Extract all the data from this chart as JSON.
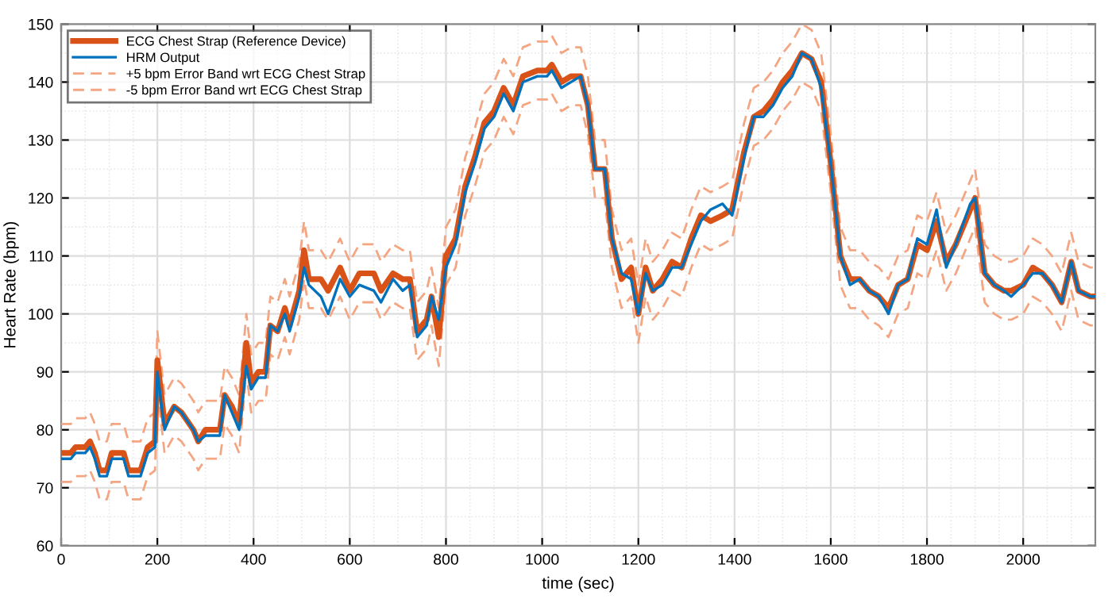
{
  "chart_data": {
    "type": "line",
    "xlabel": "time (sec)",
    "ylabel": "Heart Rate (bpm)",
    "x": [
      0,
      20,
      30,
      50,
      60,
      70,
      80,
      95,
      105,
      130,
      140,
      165,
      180,
      195,
      200,
      215,
      235,
      250,
      275,
      285,
      300,
      330,
      340,
      355,
      370,
      385,
      395,
      410,
      425,
      435,
      450,
      465,
      475,
      495,
      505,
      515,
      540,
      555,
      580,
      600,
      620,
      650,
      665,
      690,
      710,
      725,
      740,
      760,
      770,
      785,
      800,
      820,
      840,
      860,
      880,
      900,
      920,
      940,
      960,
      990,
      1010,
      1020,
      1040,
      1060,
      1080,
      1095,
      1110,
      1130,
      1145,
      1165,
      1185,
      1200,
      1215,
      1230,
      1250,
      1270,
      1290,
      1310,
      1330,
      1350,
      1375,
      1395,
      1420,
      1440,
      1460,
      1480,
      1500,
      1520,
      1540,
      1560,
      1580,
      1600,
      1620,
      1640,
      1660,
      1680,
      1700,
      1720,
      1740,
      1760,
      1780,
      1800,
      1820,
      1840,
      1860,
      1890,
      1900,
      1920,
      1940,
      1960,
      1975,
      2000,
      2020,
      2040,
      2060,
      2080,
      2100,
      2115,
      2140,
      2150
    ],
    "series": [
      {
        "name": "ECG Chest Strap (Reference Device)",
        "color": "#d95319",
        "line_style": "solid",
        "values": [
          76,
          76,
          77,
          77,
          78,
          76,
          73,
          73,
          76,
          76,
          73,
          73,
          77,
          78,
          92,
          81,
          84,
          83,
          80,
          78,
          80,
          80,
          86,
          84,
          81,
          95,
          88,
          90,
          90,
          98,
          97,
          101,
          98,
          104,
          111,
          106,
          106,
          104,
          108,
          104,
          107,
          107,
          104,
          107,
          106,
          106,
          97,
          99,
          103,
          96,
          110,
          113,
          122,
          127,
          133,
          135,
          139,
          136,
          141,
          142,
          142,
          143,
          140,
          141,
          141,
          136,
          125,
          125,
          113,
          106,
          108,
          100,
          108,
          104,
          106,
          109,
          108,
          113,
          117,
          116,
          117,
          118,
          128,
          134,
          135,
          137,
          140,
          142,
          145,
          144,
          140,
          126,
          110,
          106,
          106,
          104,
          103,
          101,
          105,
          106,
          112,
          111,
          116,
          109,
          112,
          118,
          120,
          107,
          105,
          104,
          104,
          105,
          108,
          107,
          105,
          102,
          109,
          104,
          103,
          103
        ]
      },
      {
        "name": "HRM Output",
        "color": "#0072bd",
        "line_style": "solid",
        "values": [
          75,
          75,
          76,
          76,
          77,
          75,
          72,
          72,
          75,
          75,
          72,
          72,
          76,
          77,
          90,
          80,
          84,
          83,
          80,
          78,
          79,
          79,
          86,
          83,
          80,
          91,
          87,
          89,
          89,
          98,
          97,
          100,
          97,
          103,
          108,
          105,
          103,
          100,
          106,
          103,
          105,
          104,
          102,
          106,
          104,
          105,
          96,
          98,
          103,
          99,
          108,
          112,
          121,
          126,
          132,
          134,
          138,
          135,
          140,
          141,
          141,
          142,
          139,
          140,
          141,
          136,
          125,
          125,
          113,
          107,
          106,
          100,
          107,
          104,
          105,
          108,
          108,
          112,
          116,
          118,
          119,
          117,
          127,
          134,
          134,
          136,
          139,
          141,
          145,
          144,
          139,
          126,
          110,
          105,
          106,
          104,
          103,
          100,
          105,
          106,
          113,
          112,
          118,
          108,
          112,
          119,
          120,
          107,
          105,
          104,
          103,
          105,
          107,
          107,
          105,
          102,
          109,
          104,
          103,
          103
        ]
      },
      {
        "name": "+5 bpm Error Band wrt ECG Chest Strap",
        "color": "#f4a582",
        "line_style": "dashed",
        "values": [
          81,
          81,
          82,
          82,
          83,
          81,
          78,
          78,
          81,
          81,
          78,
          78,
          82,
          83,
          97,
          86,
          89,
          88,
          85,
          83,
          85,
          85,
          91,
          89,
          86,
          100,
          93,
          95,
          95,
          103,
          102,
          106,
          103,
          109,
          116,
          111,
          111,
          109,
          113,
          109,
          112,
          112,
          109,
          112,
          111,
          111,
          102,
          104,
          108,
          101,
          115,
          118,
          127,
          132,
          138,
          140,
          144,
          141,
          146,
          147,
          147,
          148,
          145,
          146,
          146,
          141,
          130,
          130,
          118,
          111,
          113,
          105,
          113,
          109,
          111,
          114,
          113,
          118,
          122,
          121,
          122,
          123,
          133,
          139,
          140,
          142,
          145,
          147,
          150,
          149,
          145,
          131,
          115,
          111,
          111,
          109,
          108,
          106,
          110,
          111,
          117,
          116,
          121,
          114,
          117,
          123,
          125,
          112,
          110,
          109,
          109,
          110,
          113,
          112,
          110,
          107,
          114,
          109,
          108,
          108
        ]
      },
      {
        "name": "-5 bpm Error Band wrt ECG Chest Strap",
        "color": "#f4a582",
        "line_style": "dashed",
        "values": [
          71,
          71,
          72,
          72,
          73,
          71,
          68,
          68,
          71,
          71,
          68,
          68,
          72,
          73,
          87,
          76,
          79,
          78,
          75,
          73,
          75,
          75,
          81,
          79,
          76,
          90,
          83,
          85,
          85,
          93,
          92,
          96,
          93,
          99,
          106,
          101,
          101,
          99,
          103,
          99,
          102,
          102,
          99,
          102,
          101,
          101,
          92,
          94,
          98,
          91,
          105,
          108,
          117,
          122,
          128,
          130,
          134,
          131,
          136,
          137,
          137,
          138,
          135,
          136,
          136,
          131,
          120,
          120,
          108,
          101,
          103,
          95,
          103,
          99,
          101,
          104,
          103,
          108,
          112,
          111,
          112,
          113,
          123,
          129,
          130,
          132,
          135,
          137,
          140,
          139,
          135,
          121,
          105,
          101,
          101,
          99,
          98,
          96,
          100,
          101,
          107,
          106,
          111,
          104,
          107,
          113,
          115,
          102,
          100,
          99,
          99,
          100,
          103,
          102,
          100,
          97,
          104,
          99,
          98,
          98
        ]
      }
    ],
    "xlim": [
      0,
      2150
    ],
    "ylim": [
      60,
      150
    ],
    "xticks": [
      0,
      200,
      400,
      600,
      800,
      1000,
      1200,
      1400,
      1600,
      1800,
      2000
    ],
    "yticks": [
      60,
      70,
      80,
      90,
      100,
      110,
      120,
      130,
      140,
      150
    ],
    "grid": true,
    "legend": "top left",
    "marker": "none"
  }
}
